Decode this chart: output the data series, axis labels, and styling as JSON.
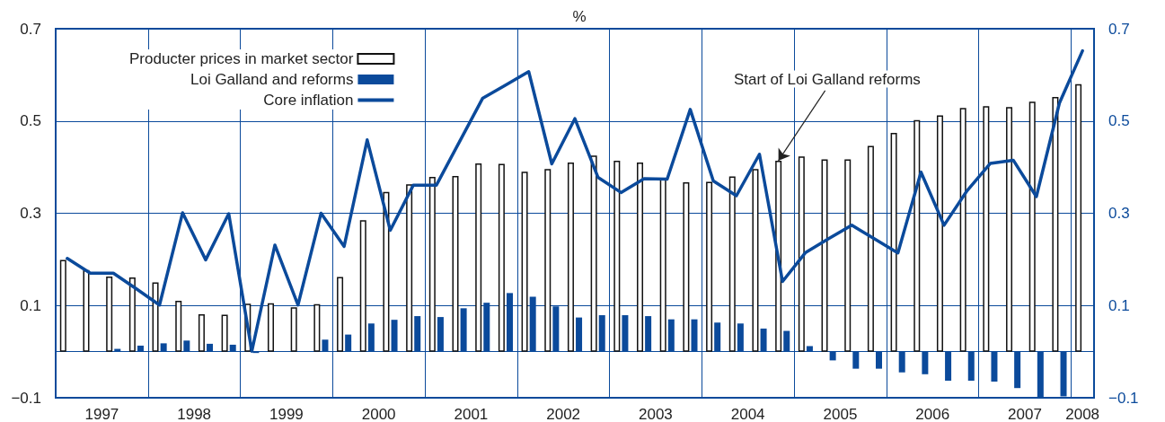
{
  "chart_data": {
    "type": "bar",
    "title": "%",
    "x": [
      1997.125,
      1997.375,
      1997.625,
      1997.875,
      1998.125,
      1998.375,
      1998.625,
      1998.875,
      1999.125,
      1999.375,
      1999.625,
      1999.875,
      2000.125,
      2000.375,
      2000.625,
      2000.875,
      2001.125,
      2001.375,
      2001.625,
      2001.875,
      2002.125,
      2002.375,
      2002.625,
      2002.875,
      2003.125,
      2003.375,
      2003.625,
      2003.875,
      2004.125,
      2004.375,
      2004.625,
      2004.875,
      2005.125,
      2005.375,
      2005.625,
      2005.875,
      2006.125,
      2006.375,
      2006.625,
      2006.875,
      2007.125,
      2007.375,
      2007.625,
      2007.875,
      2008.125
    ],
    "series": [
      {
        "name": "Producter prices in market sector",
        "color": "#ffffff",
        "values": [
          0.199,
          0.177,
          0.163,
          0.161,
          0.15,
          0.11,
          0.081,
          0.08,
          0.104,
          0.105,
          0.096,
          0.103,
          0.162,
          0.285,
          0.346,
          0.363,
          0.379,
          0.381,
          0.408,
          0.407,
          0.39,
          0.396,
          0.41,
          0.425,
          0.414,
          0.41,
          0.375,
          0.367,
          0.368,
          0.38,
          0.396,
          0.414,
          0.423,
          0.417,
          0.417,
          0.446,
          0.474,
          0.502,
          0.512,
          0.528,
          0.532,
          0.53,
          0.542,
          0.552,
          0.58
        ]
      },
      {
        "name": "Loi Galland and reforms",
        "color": "#0b4a9b",
        "values": [
          0,
          0,
          0.006,
          0.013,
          0.018,
          0.024,
          0.017,
          0.015,
          -0.003,
          0,
          0,
          0.026,
          0.037,
          0.061,
          0.069,
          0.077,
          0.075,
          0.094,
          0.106,
          0.127,
          0.119,
          0.098,
          0.074,
          0.079,
          0.079,
          0.077,
          0.07,
          0.07,
          0.063,
          0.061,
          0.05,
          0.045,
          0.012,
          -0.019,
          -0.037,
          -0.037,
          -0.045,
          -0.049,
          -0.063,
          -0.063,
          -0.065,
          -0.079,
          -0.099,
          -0.097,
          null
        ]
      },
      {
        "name": "Core inflation",
        "type": "line",
        "color": "#0b4a9b",
        "values": [
          0.202,
          0.17,
          0.17,
          0.136,
          0.101,
          0.301,
          0.199,
          0.299,
          0.001,
          0.231,
          0.101,
          0.3,
          0.228,
          0.459,
          0.263,
          0.361,
          0.361,
          0.455,
          0.549,
          0.578,
          0.607,
          0.407,
          0.505,
          0.378,
          0.345,
          0.375,
          0.374,
          0.525,
          0.37,
          0.338,
          0.428,
          0.152,
          0.215,
          0.245,
          0.274,
          0.244,
          0.214,
          0.389,
          0.274,
          0.349,
          0.408,
          0.415,
          0.336,
          0.539,
          0.652
        ]
      }
    ],
    "xlim": [
      1997,
      2008.25
    ],
    "xticks": [
      {
        "value": 1997.5,
        "label": "1997"
      },
      {
        "value": 1998,
        "label": null
      },
      {
        "value": 1998.5,
        "label": "1998"
      },
      {
        "value": 1999,
        "label": null
      },
      {
        "value": 1999.5,
        "label": "1999"
      },
      {
        "value": 2000,
        "label": null
      },
      {
        "value": 2000.5,
        "label": "2000"
      },
      {
        "value": 2001,
        "label": null
      },
      {
        "value": 2001.5,
        "label": "2001"
      },
      {
        "value": 2002,
        "label": null
      },
      {
        "value": 2002.5,
        "label": "2002"
      },
      {
        "value": 2003,
        "label": null
      },
      {
        "value": 2003.5,
        "label": "2003"
      },
      {
        "value": 2004,
        "label": null
      },
      {
        "value": 2004.5,
        "label": "2004"
      },
      {
        "value": 2005,
        "label": null
      },
      {
        "value": 2005.5,
        "label": "2005"
      },
      {
        "value": 2006,
        "label": null
      },
      {
        "value": 2006.5,
        "label": "2006"
      },
      {
        "value": 2007,
        "label": null
      },
      {
        "value": 2007.5,
        "label": "2007"
      },
      {
        "value": 2008,
        "label": null
      },
      {
        "value": 2008.125,
        "label": "2008"
      }
    ],
    "ylim": [
      -0.1,
      0.7
    ],
    "yticks": [
      -0.1,
      {
        "value": 0,
        "label": null
      },
      0.1,
      0.3,
      0.5,
      0.7
    ],
    "y2lim": [
      -0.1,
      0.7
    ],
    "y2ticks": [
      -0.1,
      0.1,
      0.3,
      0.5,
      0.7
    ],
    "grid": true,
    "legend": "top left",
    "marker": "none",
    "line_style": "solid",
    "annotations": [
      {
        "text": "Start of Loi Galland reforms",
        "x": 2004.875,
        "y": 0.414
      }
    ]
  }
}
